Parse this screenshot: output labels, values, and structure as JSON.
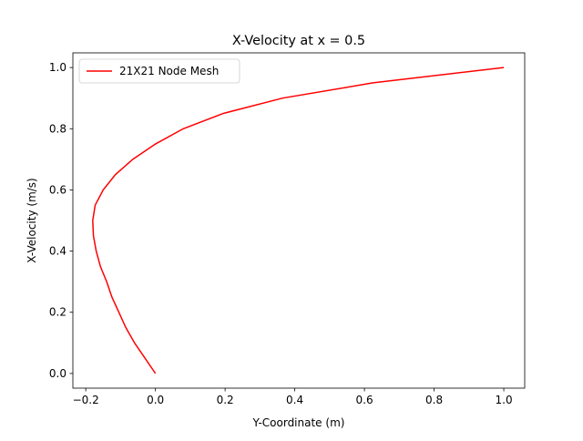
{
  "chart_data": {
    "type": "line",
    "title": "X-Velocity at x = 0.5",
    "xlabel": "Y-Coordinate (m)",
    "ylabel": "X-Velocity (m/s)",
    "x": [
      0.0,
      -0.03,
      -0.06,
      -0.085,
      -0.105,
      -0.125,
      -0.14,
      -0.158,
      -0.17,
      -0.178,
      -0.18,
      -0.173,
      -0.15,
      -0.115,
      -0.065,
      0.0,
      0.08,
      0.195,
      0.365,
      0.625,
      1.0
    ],
    "series": [
      {
        "name": "21X21 Node Mesh",
        "color": "#ff0000",
        "values": [
          0.0,
          0.05,
          0.1,
          0.15,
          0.2,
          0.25,
          0.3,
          0.35,
          0.4,
          0.45,
          0.5,
          0.55,
          0.6,
          0.65,
          0.7,
          0.75,
          0.8,
          0.85,
          0.9,
          0.95,
          1.0
        ]
      }
    ],
    "xlim": [
      -0.237,
      1.06
    ],
    "ylim": [
      -0.048,
      1.048
    ],
    "xticks": [
      {
        "value": -0.2,
        "label": "−0.2"
      },
      {
        "value": 0,
        "label": "0.0"
      },
      0.2,
      0.4,
      0.6,
      0.8,
      {
        "value": 1,
        "label": "1.0"
      }
    ],
    "yticks": [
      {
        "value": 0,
        "label": "0.0"
      },
      0.2,
      0.4,
      0.6,
      0.8,
      {
        "value": 1,
        "label": "1.0"
      }
    ],
    "legend": "upper left"
  }
}
